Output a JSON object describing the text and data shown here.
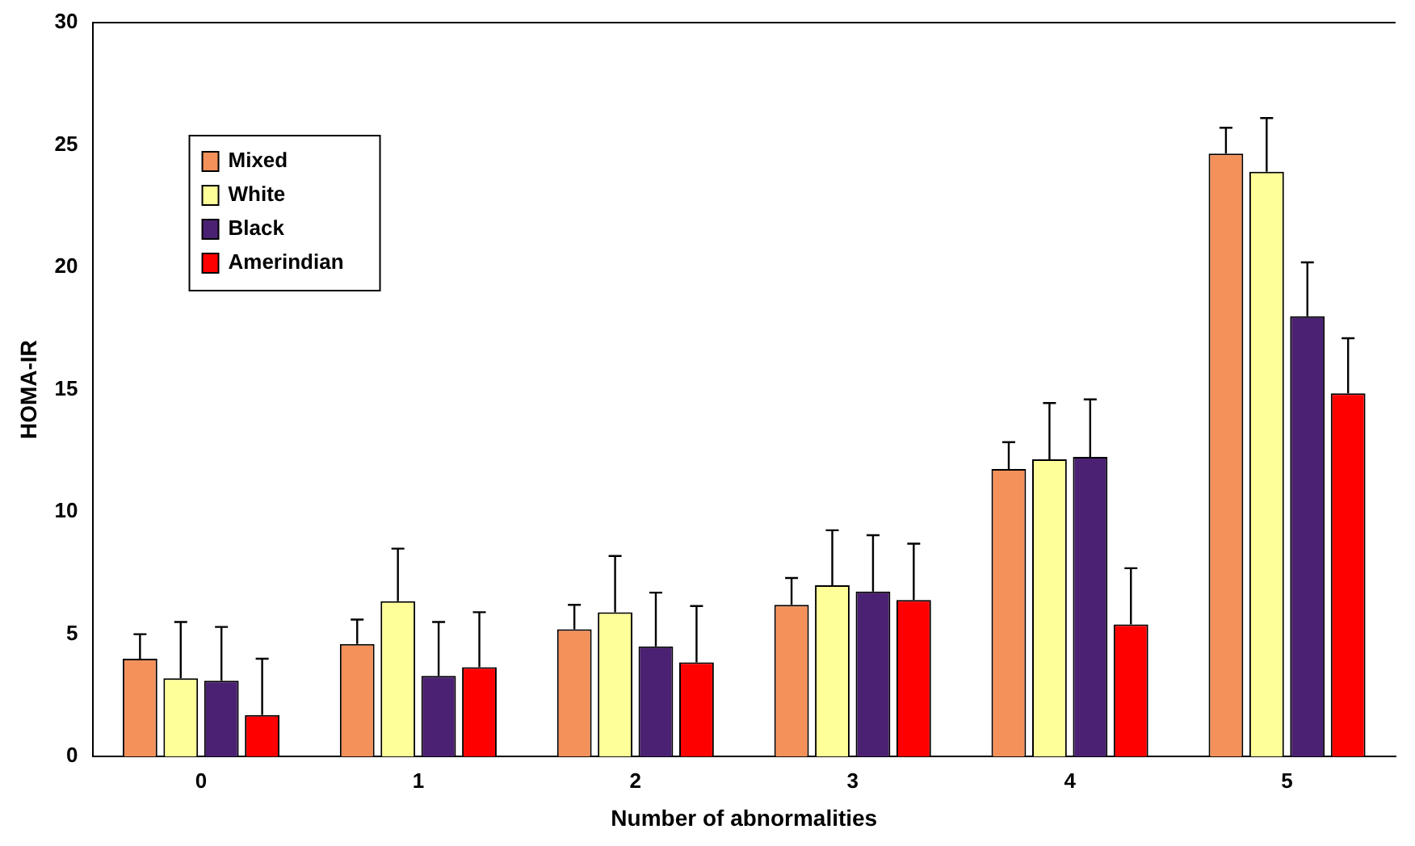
{
  "chart_data": {
    "type": "bar",
    "xlabel": "Number of abnormalities",
    "ylabel": "HOMA-IR",
    "categories": [
      "0",
      "1",
      "2",
      "3",
      "4",
      "5"
    ],
    "series": [
      {
        "name": "Mixed",
        "color": "#f4905a",
        "values": [
          4.0,
          4.6,
          5.2,
          6.2,
          11.75,
          24.65
        ],
        "errors": [
          [
            4.0,
            5.0
          ],
          [
            4.6,
            5.6
          ],
          [
            5.2,
            6.2
          ],
          [
            6.2,
            7.3
          ],
          [
            11.75,
            12.85
          ],
          [
            24.65,
            25.7
          ]
        ]
      },
      {
        "name": "White",
        "color": "#ffff99",
        "values": [
          3.2,
          6.35,
          5.9,
          7.0,
          12.15,
          23.9
        ],
        "errors": [
          [
            3.2,
            5.5
          ],
          [
            6.35,
            8.5
          ],
          [
            5.9,
            8.2
          ],
          [
            7.0,
            9.25
          ],
          [
            12.15,
            14.45
          ],
          [
            23.9,
            26.1
          ]
        ]
      },
      {
        "name": "Black",
        "color": "#4b2173",
        "values": [
          3.1,
          3.3,
          4.5,
          6.75,
          12.25,
          18.0
        ],
        "errors": [
          [
            3.1,
            5.3
          ],
          [
            3.3,
            5.5
          ],
          [
            4.5,
            6.7
          ],
          [
            6.75,
            9.05
          ],
          [
            12.25,
            14.6
          ],
          [
            18.0,
            20.2
          ]
        ]
      },
      {
        "name": "Amerindian",
        "color": "#ff0000",
        "values": [
          1.7,
          3.65,
          3.85,
          6.4,
          5.4,
          14.85
        ],
        "errors": [
          [
            1.7,
            4.0
          ],
          [
            3.65,
            5.9
          ],
          [
            3.85,
            6.15
          ],
          [
            6.4,
            8.7
          ],
          [
            5.4,
            7.7
          ],
          [
            14.85,
            17.1
          ]
        ]
      }
    ],
    "ylim": [
      0,
      30
    ],
    "yticks": [
      0,
      5,
      10,
      15,
      20,
      25,
      30
    ],
    "grid": false,
    "legend": "top left"
  }
}
